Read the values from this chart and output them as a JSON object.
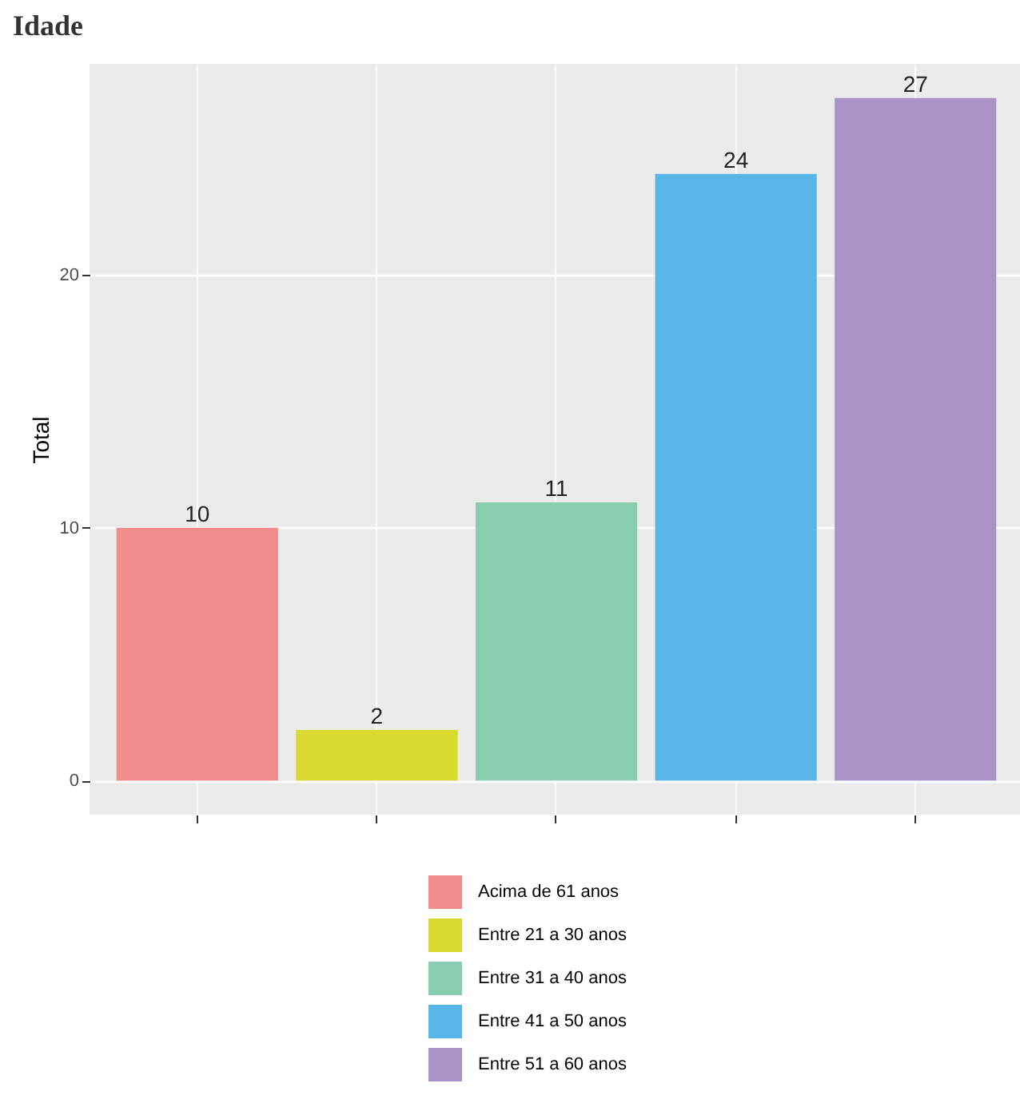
{
  "chart_data": {
    "type": "bar",
    "title": "Idade",
    "ylabel": "Total",
    "categories": [
      null,
      null,
      null,
      null,
      null
    ],
    "series": [
      {
        "name": "Acima  de 61 anos",
        "color": "#f28b8b",
        "values": [
          10,
          null,
          null,
          null,
          null
        ]
      },
      {
        "name": "Entre 21 a 30 anos",
        "color": "#d9d92e",
        "values": [
          null,
          2,
          null,
          null,
          null
        ]
      },
      {
        "name": "Entre 31 a 40 anos",
        "color": "#88cdb0",
        "values": [
          null,
          null,
          11,
          null,
          null
        ]
      },
      {
        "name": "Entre 41 a 50 anos",
        "color": "#57b5e8",
        "values": [
          null,
          null,
          null,
          24,
          null
        ]
      },
      {
        "name": "Entre 51 a 60 anos",
        "color": "#a993c6",
        "values": [
          null,
          null,
          null,
          null,
          27
        ]
      }
    ],
    "ylim": [
      -1.35,
      28.35
    ],
    "yticks": [
      0,
      10,
      20
    ],
    "grid": true,
    "legend": "bottom",
    "tick_labels": "y",
    "data_labels": true
  }
}
